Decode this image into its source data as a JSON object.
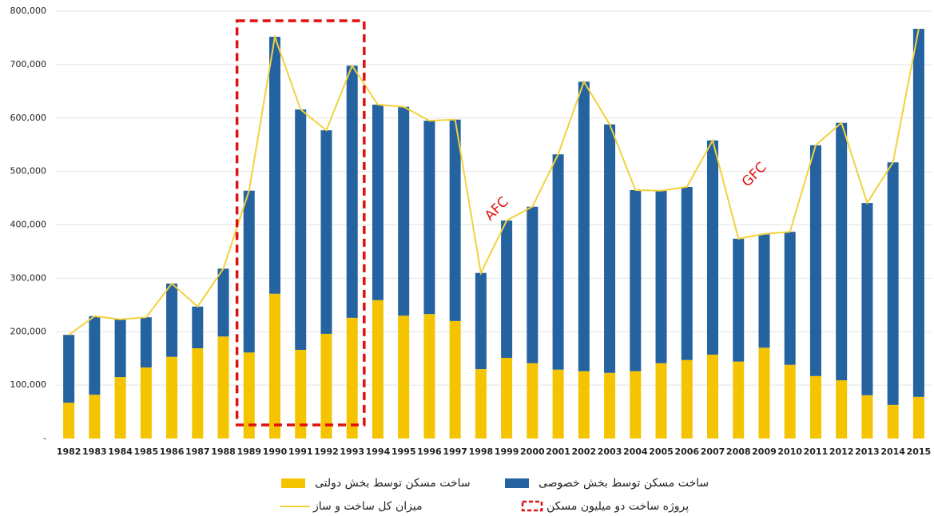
{
  "chart_data": {
    "type": "stacked-bar-line",
    "categories": [
      "1982",
      "1983",
      "1984",
      "1985",
      "1986",
      "1987",
      "1988",
      "1989",
      "1990",
      "1991",
      "1992",
      "1993",
      "1994",
      "1995",
      "1996",
      "1997",
      "1998",
      "1999",
      "2000",
      "2001",
      "2002",
      "2003",
      "2004",
      "2005",
      "2006",
      "2007",
      "2008",
      "2009",
      "2010",
      "2011",
      "2012",
      "2013",
      "2014",
      "2015"
    ],
    "series": [
      {
        "name": "ساخت مسکن توسط بخش دولتی",
        "color": "#f5c400",
        "kind": "bar",
        "values": [
          67000,
          82000,
          115000,
          133000,
          153000,
          169000,
          191000,
          161000,
          271000,
          166000,
          196000,
          226000,
          259000,
          230000,
          233000,
          220000,
          130000,
          151000,
          141000,
          129000,
          126000,
          123000,
          126000,
          141000,
          147000,
          157000,
          144000,
          170000,
          138000,
          117000,
          109000,
          81000,
          63000,
          78000
        ]
      },
      {
        "name": "ساخت مسکن توسط بخش خصوصی",
        "color": "#2462a0",
        "kind": "bar",
        "values": [
          127000,
          147000,
          108000,
          94000,
          137000,
          78000,
          127000,
          303000,
          481000,
          450000,
          381000,
          472000,
          366000,
          391000,
          362000,
          377000,
          180000,
          257000,
          293000,
          403000,
          542000,
          465000,
          339000,
          323000,
          324000,
          401000,
          230000,
          213000,
          249000,
          432000,
          482000,
          360000,
          454000,
          689000
        ]
      },
      {
        "name": "میزان کل ساخت و ساز",
        "color": "#f2d23c",
        "kind": "line",
        "values": [
          194000,
          229000,
          223000,
          227000,
          290000,
          247000,
          318000,
          464000,
          752000,
          616000,
          577000,
          698000,
          625000,
          621000,
          595000,
          597000,
          310000,
          408000,
          434000,
          532000,
          668000,
          588000,
          465000,
          464000,
          471000,
          558000,
          374000,
          383000,
          387000,
          549000,
          591000,
          441000,
          517000,
          767000
        ]
      }
    ],
    "highlight": {
      "label": "پروژه ساخت دو میلیون مسکن",
      "color": "#e01010",
      "from": "1989",
      "to": "1993"
    },
    "annotations": [
      {
        "text": "AFC",
        "x": "1998"
      },
      {
        "text": "GFC",
        "x": "2008"
      }
    ],
    "ylim": [
      0,
      800000
    ],
    "yticks": [
      {
        "value": 0,
        "label": "-"
      },
      {
        "value": 100000,
        "label": "100,000"
      },
      {
        "value": 200000,
        "label": "200,000"
      },
      {
        "value": 300000,
        "label": "300,000"
      },
      {
        "value": 400000,
        "label": "400,000"
      },
      {
        "value": 500000,
        "label": "500,000"
      },
      {
        "value": 600000,
        "label": "600,000"
      },
      {
        "value": 700000,
        "label": "700,000"
      },
      {
        "value": 800000,
        "label": "800,000"
      }
    ],
    "grid": true
  }
}
